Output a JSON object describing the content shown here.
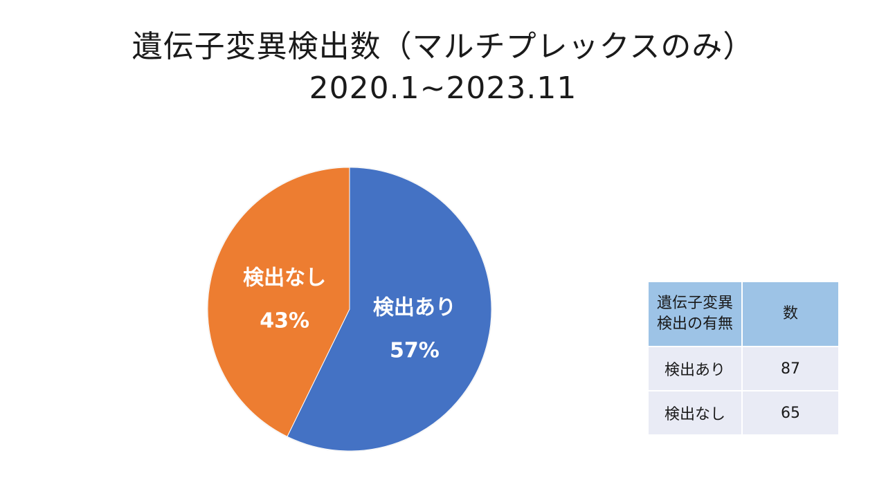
{
  "title": {
    "line1": "遺伝子変異検出数（マルチプレックスのみ）",
    "line2": "2020.1~2023.11"
  },
  "colors": {
    "series_detected": "#4472c4",
    "series_not_detected": "#ed7d31",
    "table_header_bg": "#9dc3e6",
    "table_body_bg": "#e9ebf5",
    "label_text": "#ffffff"
  },
  "chart_data": {
    "type": "pie",
    "title": "遺伝子変異検出数（マルチプレックスのみ） 2020.1~2023.11",
    "slices": [
      {
        "label": "検出あり",
        "value": 87,
        "percent_label": "57%"
      },
      {
        "label": "検出なし",
        "value": 65,
        "percent_label": "43%"
      }
    ],
    "start_angle": "12 o'clock",
    "direction": "clockwise",
    "legend": "none"
  },
  "table": {
    "headers": [
      "遺伝子変異検出の有無",
      "数"
    ],
    "header_lines": [
      "遺伝子変異",
      "検出の有無"
    ],
    "rows": [
      [
        "検出あり",
        "87"
      ],
      [
        "検出なし",
        "65"
      ]
    ]
  }
}
